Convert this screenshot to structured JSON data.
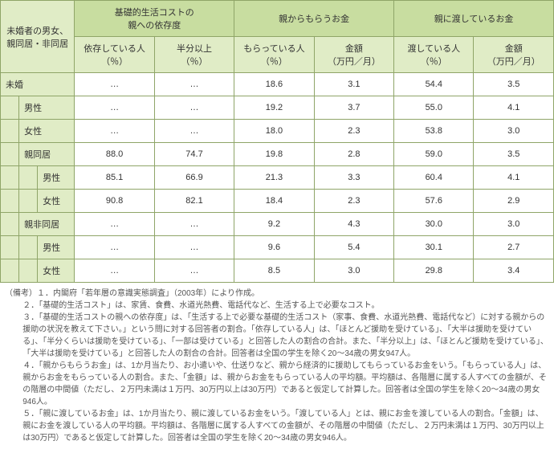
{
  "header": {
    "row_header": "未婚者の男女、\n親同居・非同居",
    "groups": [
      {
        "title": "基礎的生活コストの\n親への依存度",
        "subL": "依存している人\n（％）",
        "subR": "半分以上\n（％）"
      },
      {
        "title": "親からもらうお金",
        "subL": "もらっている人\n（％）",
        "subR": "金額\n（万円／月）"
      },
      {
        "title": "親に渡しているお金",
        "subL": "渡している人\n（％）",
        "subR": "金額\n（万円／月）"
      }
    ]
  },
  "rows": [
    {
      "label": "未婚",
      "cells": [
        "…",
        "…",
        "18.6",
        "3.1",
        "54.4",
        "3.5"
      ],
      "lead": 0,
      "span": 4
    },
    {
      "label": "男性",
      "cells": [
        "…",
        "…",
        "19.2",
        "3.7",
        "55.0",
        "4.1"
      ],
      "lead": 1,
      "span": 3
    },
    {
      "label": "女性",
      "cells": [
        "…",
        "…",
        "18.0",
        "2.3",
        "53.8",
        "3.0"
      ],
      "lead": 1,
      "span": 3
    },
    {
      "label": "親同居",
      "cells": [
        "88.0",
        "74.7",
        "19.8",
        "2.8",
        "59.0",
        "3.5"
      ],
      "lead": 1,
      "span": 3
    },
    {
      "label": "男性",
      "cells": [
        "85.1",
        "66.9",
        "21.3",
        "3.3",
        "60.4",
        "4.1"
      ],
      "lead": 2,
      "span": 2
    },
    {
      "label": "女性",
      "cells": [
        "90.8",
        "82.1",
        "18.4",
        "2.3",
        "57.6",
        "2.9"
      ],
      "lead": 2,
      "span": 2
    },
    {
      "label": "親非同居",
      "cells": [
        "…",
        "…",
        "9.2",
        "4.3",
        "30.0",
        "3.0"
      ],
      "lead": 1,
      "span": 3
    },
    {
      "label": "男性",
      "cells": [
        "…",
        "…",
        "9.6",
        "5.4",
        "30.1",
        "2.7"
      ],
      "lead": 2,
      "span": 2
    },
    {
      "label": "女性",
      "cells": [
        "…",
        "…",
        "8.5",
        "3.0",
        "29.8",
        "3.4"
      ],
      "lead": 2,
      "span": 2
    }
  ],
  "colwidths": {
    "stub_unit": 23,
    "stub_total": 92,
    "data": 99
  },
  "notes": {
    "head": "（備考）",
    "items": [
      "１．内閣府「若年層の意識実態調査」（2003年）により作成。",
      "２．「基礎的生活コスト」は、家賃、食費、水道光熱費、電話代など、生活する上で必要なコスト。",
      "３．「基礎的生活コストの親への依存度」は、「生活する上で必要な基礎的生活コスト（家事、食費、水道光熱費、電話代など）に対する親からの援助の状況を教えて下さい。」という問に対する回答者の割合。「依存している人」は、「ほとんど援助を受けている」、「大半は援助を受けている」、「半分くらいは援助を受けている」、「一部は受けている」と回答した人の割合の合計。また、「半分以上」は、「ほとんど援助を受けている」、「大半は援助を受けている」と回答した人の割合の合計。回答者は全国の学生を除く20～34歳の男女947人。",
      "４．「親からもらうお金」は、1か月当たり、お小遣いや、仕送りなど、親から経済的に援助してもらっているお金をいう。「もらっている人」は、親からお金をもらっている人の割合。また、「金額」は、親からお金をもらっている人の平均額。平均額は、各階層に属する人すべての金額が、その階層の中間値（ただし、２万円未満は１万円、30万円以上は30万円）であると仮定して計算した。回答者は全国の学生を除く20～34歳の男女946人。",
      "５．「親に渡しているお金」は、1か月当たり、親に渡しているお金をいう。「渡している人」とは、親にお金を渡している人の割合。「金額」は、親にお金を渡している人の平均額。平均額は、各階層に属する人すべての金額が、その階層の中間値（ただし、２万円未満は１万円、30万円以上は30万円）であると仮定して計算した。回答者は全国の学生を除く20～34歳の男女946人。"
    ]
  },
  "colors": {
    "border": "#8fa568",
    "hdr_top": "#c8dda0",
    "hdr_sub": "#e0ecc6"
  }
}
